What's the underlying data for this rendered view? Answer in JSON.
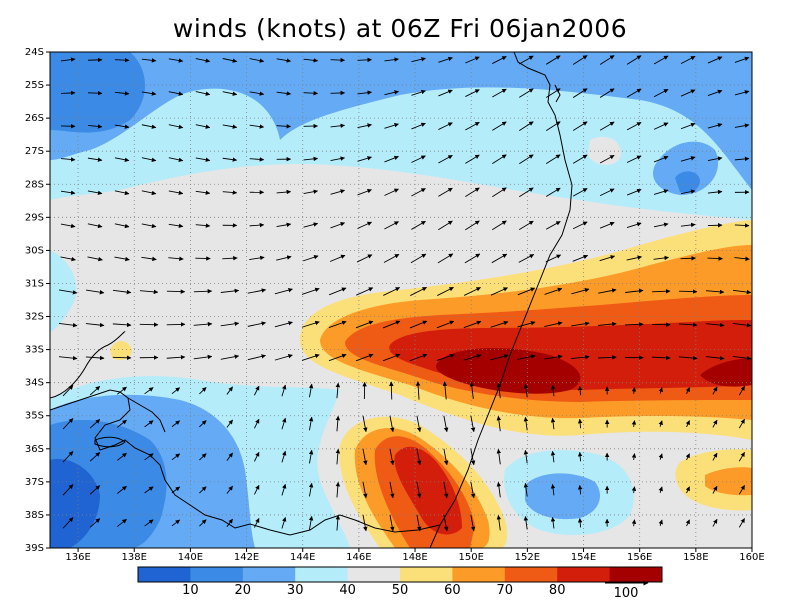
{
  "title": "winds (knots) at 06Z Fri 06jan2006",
  "map": {
    "lon_range": [
      135,
      160
    ],
    "lat_range": [
      -39,
      -24
    ],
    "x_tick_labels": [
      "136E",
      "138E",
      "140E",
      "142E",
      "144E",
      "146E",
      "148E",
      "150E",
      "152E",
      "154E",
      "156E",
      "158E",
      "160E"
    ],
    "y_tick_labels": [
      "24S",
      "25S",
      "26S",
      "27S",
      "28S",
      "29S",
      "30S",
      "31S",
      "32S",
      "33S",
      "34S",
      "35S",
      "36S",
      "37S",
      "38S",
      "39S"
    ],
    "grid": "dotted"
  },
  "colorbar": {
    "labels": [
      "10",
      "20",
      "30",
      "40",
      "50",
      "60",
      "70",
      "80"
    ],
    "colors": [
      "#1f64d2",
      "#3a8ae6",
      "#64aaf5",
      "#b4ecfa",
      "#e6e6e6",
      "#fbe07a",
      "#fc9b28",
      "#ef5a14",
      "#d21e0a",
      "#a50000"
    ],
    "vector_reference": "100"
  },
  "colors": {
    "land_outline": "#000000",
    "vector": "#000000"
  }
}
